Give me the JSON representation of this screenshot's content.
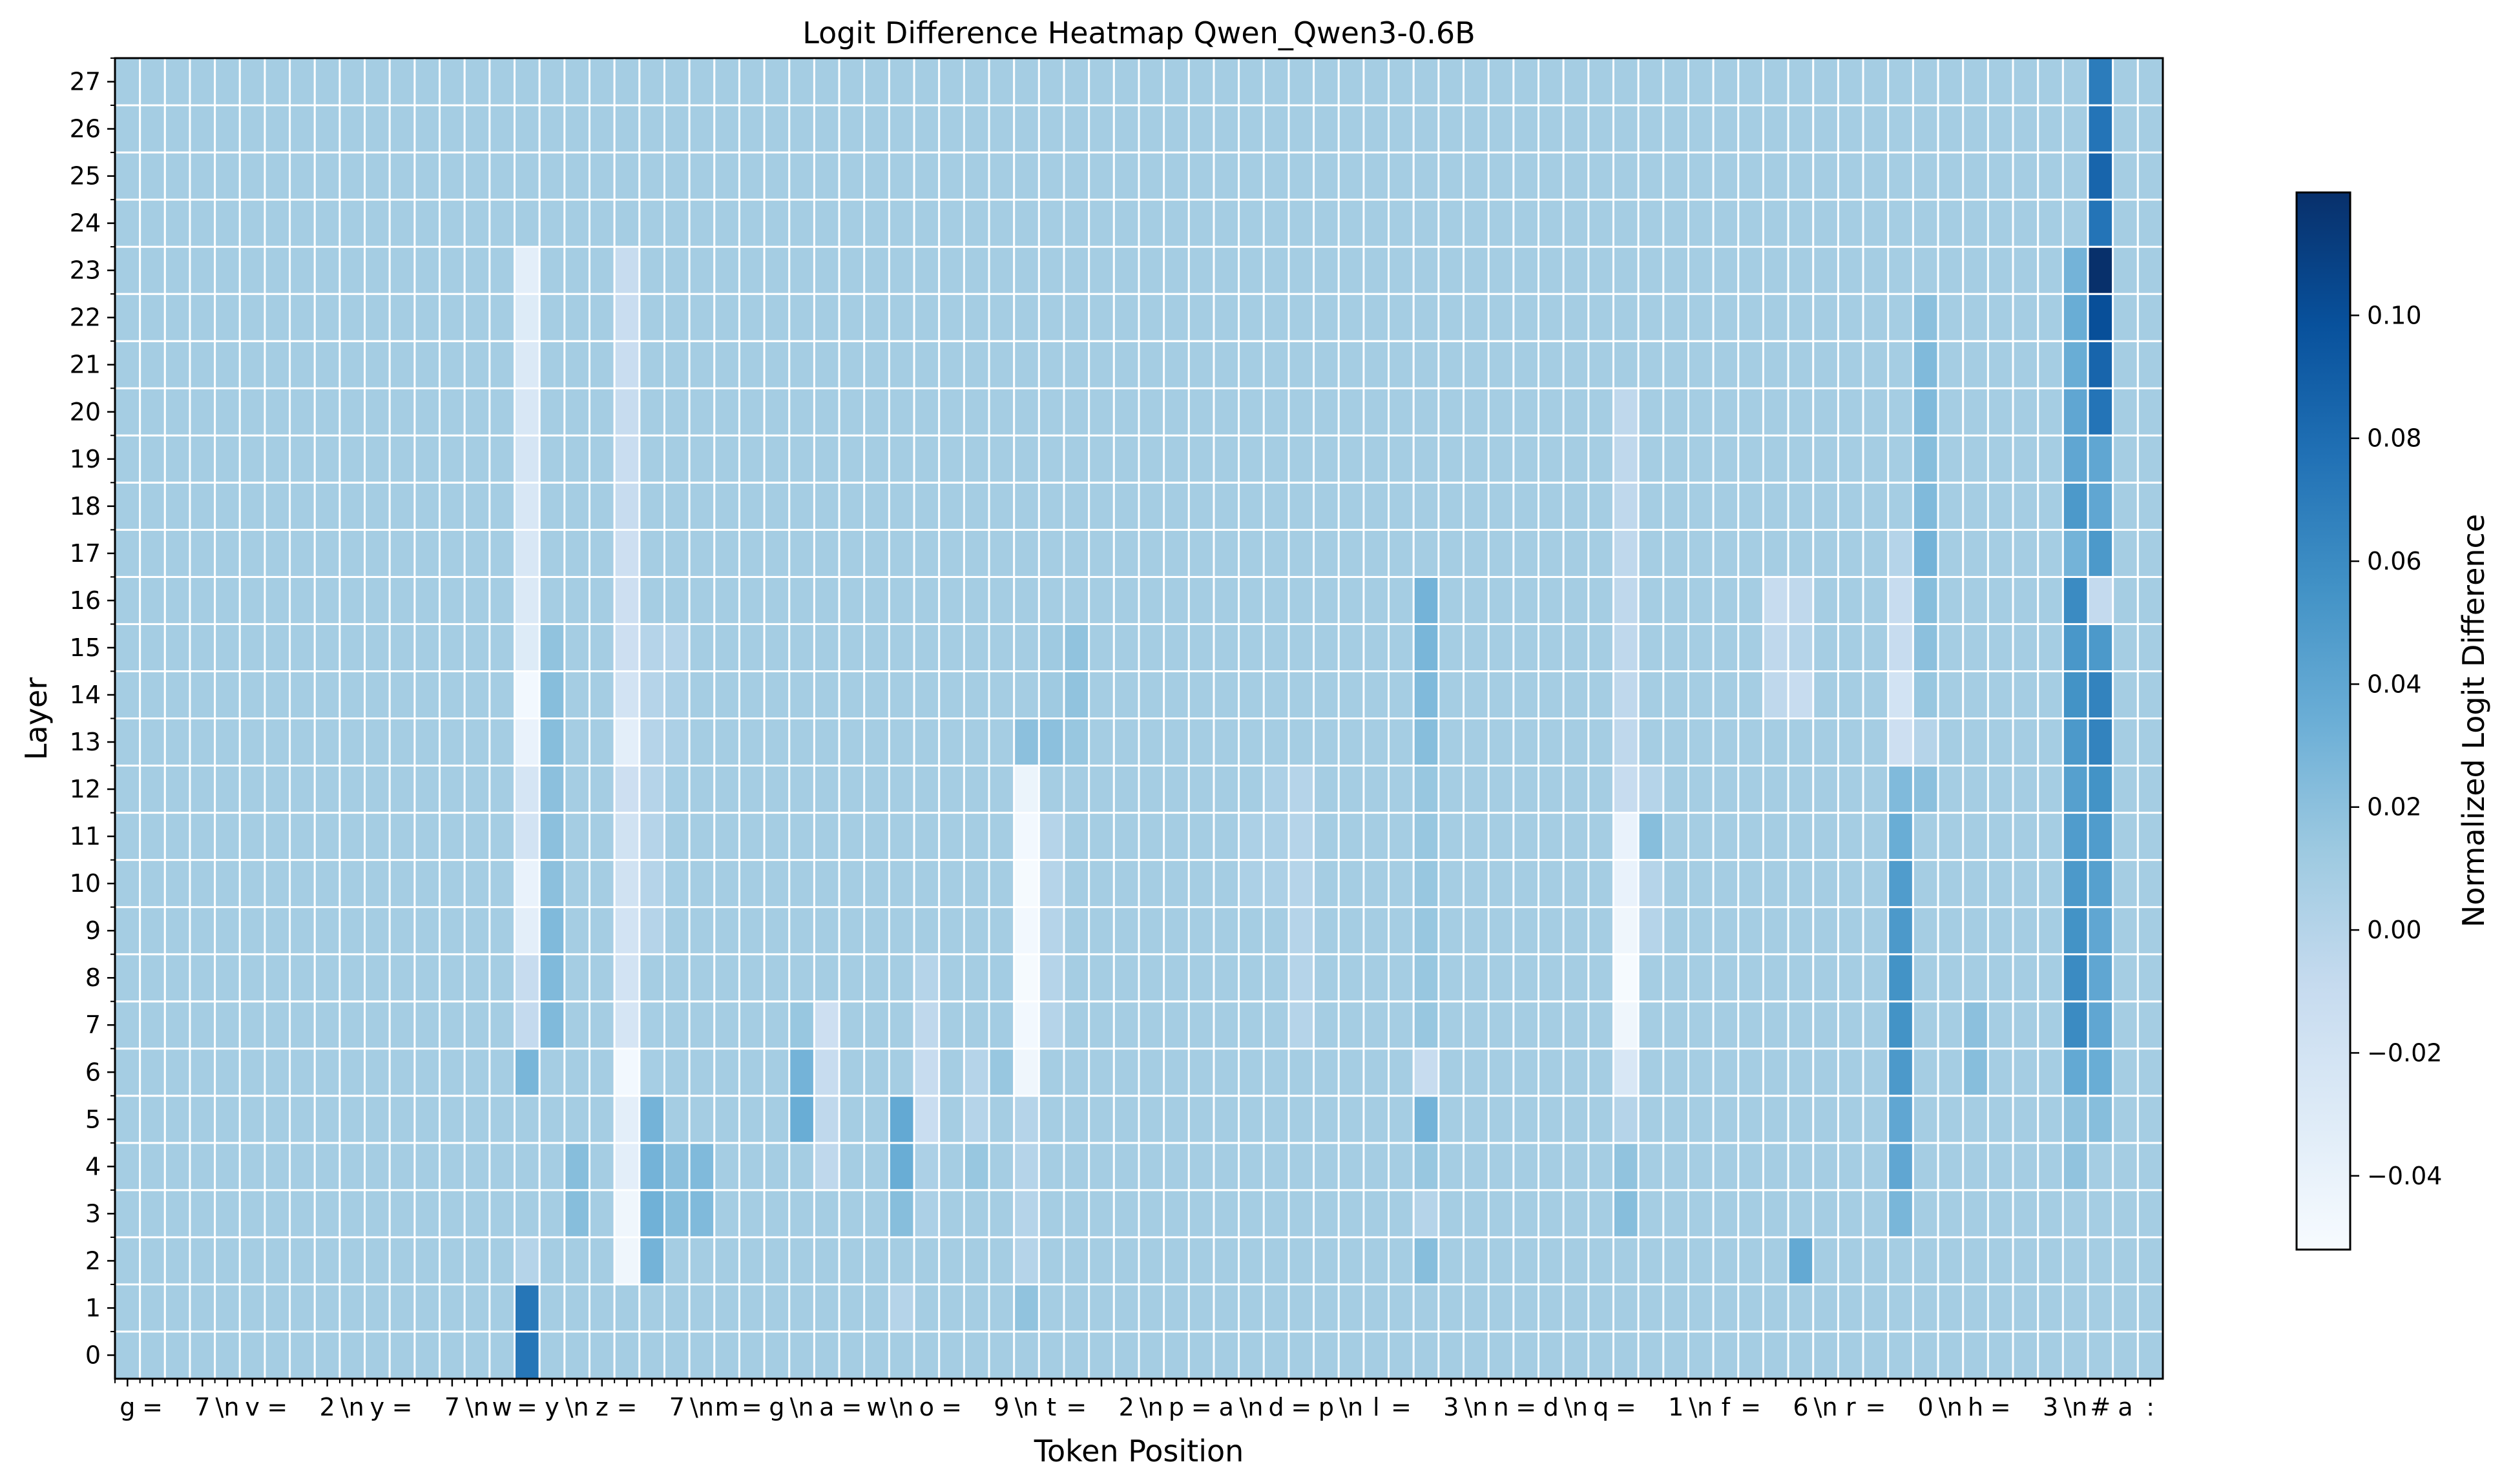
{
  "chart_data": {
    "type": "heatmap",
    "title": "Logit Difference Heatmap Qwen_Qwen3-0.6B",
    "xlabel": "Token Position",
    "ylabel": "Layer",
    "colorbar_label": "Normalized Logit Difference",
    "colormap": "Blues",
    "vmin": -0.052,
    "vmax": 0.12,
    "colorbar_ticks": [
      -0.04,
      -0.02,
      0.0,
      0.02,
      0.04,
      0.06,
      0.08,
      0.1
    ],
    "colorbar_tick_labels": [
      "−0.04",
      "−0.02",
      "0.00",
      "0.02",
      "0.04",
      "0.06",
      "0.08",
      "0.10"
    ],
    "layers": [
      0,
      1,
      2,
      3,
      4,
      5,
      6,
      7,
      8,
      9,
      10,
      11,
      12,
      13,
      14,
      15,
      16,
      17,
      18,
      19,
      20,
      21,
      22,
      23,
      24,
      25,
      26,
      27
    ],
    "tokens": [
      "g",
      " =",
      "",
      "7",
      "\\n",
      "v",
      " =",
      "",
      "2",
      "\\n",
      "y",
      " =",
      "",
      "7",
      "\\n",
      "w",
      " =",
      "y",
      "\\n",
      "z",
      " =",
      "",
      "7",
      "\\n",
      "m",
      " =",
      "g",
      "\\n",
      "a",
      " =",
      "w",
      "\\n",
      "o",
      " =",
      "",
      "9",
      "\\n",
      "t",
      " =",
      "",
      "2",
      "\\n",
      "p",
      " =",
      "a",
      "\\n",
      "d",
      " =",
      "p",
      "\\n",
      "l",
      " =",
      "",
      "3",
      "\\n",
      "n",
      " =",
      "d",
      "\\n",
      "q",
      " =",
      "",
      "1",
      "\\n",
      "f",
      " =",
      "",
      "6",
      "\\n",
      "r",
      " =",
      "",
      "0",
      "\\n",
      "h",
      " =",
      "",
      "3",
      "\\n",
      "#",
      "a",
      ":"
    ],
    "base_value": 0.009,
    "cells": [
      [
        0,
        16,
        0.074
      ],
      [
        1,
        16,
        0.074
      ],
      [
        2,
        16,
        0.0
      ],
      [
        3,
        16,
        0.009
      ],
      [
        4,
        16,
        0.009
      ],
      [
        5,
        16,
        0.009
      ],
      [
        6,
        16,
        0.028
      ],
      [
        7,
        16,
        -0.008
      ],
      [
        8,
        16,
        -0.01
      ],
      [
        9,
        16,
        -0.035
      ],
      [
        10,
        16,
        -0.04
      ],
      [
        11,
        16,
        -0.02
      ],
      [
        12,
        16,
        -0.022
      ],
      [
        13,
        16,
        -0.04
      ],
      [
        14,
        16,
        -0.048
      ],
      [
        15,
        16,
        -0.03
      ],
      [
        16,
        16,
        -0.028
      ],
      [
        17,
        16,
        -0.025
      ],
      [
        18,
        16,
        -0.025
      ],
      [
        19,
        16,
        -0.022
      ],
      [
        20,
        16,
        -0.025
      ],
      [
        21,
        16,
        -0.028
      ],
      [
        22,
        16,
        -0.03
      ],
      [
        23,
        16,
        -0.035
      ],
      [
        7,
        17,
        0.025
      ],
      [
        8,
        17,
        0.025
      ],
      [
        9,
        17,
        0.025
      ],
      [
        10,
        17,
        0.02
      ],
      [
        11,
        17,
        0.02
      ],
      [
        12,
        17,
        0.02
      ],
      [
        13,
        17,
        0.022
      ],
      [
        14,
        17,
        0.022
      ],
      [
        15,
        17,
        0.018
      ],
      [
        3,
        18,
        0.022
      ],
      [
        4,
        18,
        0.022
      ],
      [
        9,
        21,
        0.0
      ],
      [
        10,
        21,
        0.0
      ],
      [
        11,
        21,
        0.0
      ],
      [
        12,
        21,
        0.0
      ],
      [
        13,
        21,
        0.0
      ],
      [
        14,
        21,
        0.0
      ],
      [
        15,
        21,
        0.0
      ],
      [
        10,
        22,
        0.008
      ],
      [
        11,
        22,
        0.009
      ],
      [
        12,
        22,
        0.008
      ],
      [
        13,
        22,
        0.005
      ],
      [
        14,
        22,
        0.005
      ],
      [
        15,
        22,
        0.0
      ],
      [
        3,
        23,
        0.025
      ],
      [
        4,
        23,
        0.025
      ],
      [
        2,
        20,
        -0.045
      ],
      [
        3,
        20,
        -0.045
      ],
      [
        4,
        20,
        -0.035
      ],
      [
        5,
        20,
        -0.035
      ],
      [
        6,
        20,
        -0.048
      ],
      [
        7,
        20,
        -0.022
      ],
      [
        8,
        20,
        -0.02
      ],
      [
        9,
        20,
        -0.02
      ],
      [
        10,
        20,
        -0.018
      ],
      [
        11,
        20,
        -0.018
      ],
      [
        12,
        20,
        -0.015
      ],
      [
        13,
        20,
        -0.035
      ],
      [
        14,
        20,
        -0.02
      ],
      [
        15,
        20,
        -0.015
      ],
      [
        16,
        20,
        -0.015
      ],
      [
        17,
        20,
        -0.015
      ],
      [
        18,
        20,
        -0.01
      ],
      [
        19,
        20,
        -0.012
      ],
      [
        20,
        20,
        -0.01
      ],
      [
        21,
        20,
        -0.012
      ],
      [
        22,
        20,
        -0.012
      ],
      [
        23,
        20,
        -0.01
      ],
      [
        2,
        21,
        0.03
      ],
      [
        3,
        21,
        0.032
      ],
      [
        4,
        21,
        0.03
      ],
      [
        5,
        21,
        0.03
      ],
      [
        6,
        21,
        0.008
      ],
      [
        7,
        21,
        0.008
      ],
      [
        3,
        22,
        0.022
      ],
      [
        4,
        22,
        0.02
      ],
      [
        5,
        27,
        0.035
      ],
      [
        6,
        27,
        0.03
      ],
      [
        7,
        27,
        0.015
      ],
      [
        4,
        28,
        -0.005
      ],
      [
        5,
        28,
        -0.005
      ],
      [
        6,
        28,
        -0.01
      ],
      [
        7,
        28,
        -0.015
      ],
      [
        1,
        31,
        0.0
      ],
      [
        3,
        31,
        0.022
      ],
      [
        4,
        31,
        0.035
      ],
      [
        5,
        31,
        0.038
      ],
      [
        6,
        32,
        -0.01
      ],
      [
        5,
        32,
        -0.012
      ],
      [
        4,
        32,
        0.005
      ],
      [
        3,
        32,
        0.005
      ],
      [
        7,
        32,
        -0.005
      ],
      [
        8,
        32,
        0.0
      ],
      [
        4,
        34,
        0.015
      ],
      [
        5,
        34,
        0.0
      ],
      [
        6,
        34,
        0.0
      ],
      [
        6,
        35,
        0.015
      ],
      [
        7,
        35,
        0.01
      ],
      [
        8,
        35,
        0.01
      ],
      [
        1,
        36,
        0.018
      ],
      [
        2,
        36,
        0.0
      ],
      [
        3,
        36,
        0.0
      ],
      [
        4,
        36,
        0.0
      ],
      [
        5,
        36,
        0.0
      ],
      [
        6,
        36,
        -0.045
      ],
      [
        7,
        36,
        -0.048
      ],
      [
        8,
        36,
        -0.05
      ],
      [
        9,
        36,
        -0.048
      ],
      [
        10,
        36,
        -0.05
      ],
      [
        11,
        36,
        -0.048
      ],
      [
        12,
        36,
        -0.042
      ],
      [
        13,
        36,
        0.02
      ],
      [
        7,
        37,
        0.0
      ],
      [
        8,
        37,
        0.0
      ],
      [
        9,
        37,
        0.0
      ],
      [
        10,
        37,
        0.0
      ],
      [
        11,
        37,
        0.0
      ],
      [
        13,
        37,
        0.02
      ],
      [
        14,
        37,
        0.012
      ],
      [
        15,
        37,
        0.012
      ],
      [
        13,
        38,
        0.015
      ],
      [
        14,
        38,
        0.018
      ],
      [
        15,
        38,
        0.018
      ],
      [
        10,
        45,
        0.005
      ],
      [
        11,
        45,
        0.005
      ],
      [
        10,
        46,
        0.005
      ],
      [
        11,
        46,
        0.005
      ],
      [
        12,
        46,
        0.005
      ],
      [
        7,
        47,
        0.0
      ],
      [
        8,
        47,
        0.0
      ],
      [
        9,
        47,
        0.0
      ],
      [
        10,
        47,
        0.0
      ],
      [
        11,
        47,
        0.0
      ],
      [
        12,
        47,
        0.0
      ],
      [
        2,
        52,
        0.022
      ],
      [
        3,
        52,
        0.0
      ],
      [
        4,
        52,
        0.015
      ],
      [
        5,
        52,
        0.03
      ],
      [
        6,
        52,
        -0.01
      ],
      [
        7,
        52,
        0.015
      ],
      [
        8,
        52,
        0.015
      ],
      [
        9,
        52,
        0.015
      ],
      [
        10,
        52,
        0.015
      ],
      [
        11,
        52,
        0.015
      ],
      [
        12,
        52,
        0.015
      ],
      [
        13,
        52,
        0.022
      ],
      [
        14,
        52,
        0.025
      ],
      [
        15,
        52,
        0.028
      ],
      [
        16,
        52,
        0.03
      ],
      [
        3,
        60,
        0.022
      ],
      [
        4,
        60,
        0.018
      ],
      [
        5,
        60,
        0.0
      ],
      [
        6,
        60,
        -0.025
      ],
      [
        7,
        60,
        -0.045
      ],
      [
        8,
        60,
        -0.05
      ],
      [
        9,
        60,
        -0.045
      ],
      [
        10,
        60,
        -0.04
      ],
      [
        11,
        60,
        -0.04
      ],
      [
        12,
        60,
        -0.01
      ],
      [
        13,
        60,
        -0.005
      ],
      [
        14,
        60,
        -0.005
      ],
      [
        15,
        60,
        -0.005
      ],
      [
        16,
        60,
        -0.005
      ],
      [
        17,
        60,
        -0.005
      ],
      [
        18,
        60,
        -0.005
      ],
      [
        19,
        60,
        -0.005
      ],
      [
        20,
        60,
        -0.005
      ],
      [
        11,
        61,
        0.022
      ],
      [
        12,
        61,
        0.0
      ],
      [
        10,
        61,
        0.0
      ],
      [
        9,
        61,
        0.0
      ],
      [
        2,
        67,
        0.038
      ],
      [
        15,
        66,
        -0.005
      ],
      [
        16,
        66,
        -0.01
      ],
      [
        14,
        66,
        -0.005
      ],
      [
        16,
        67,
        -0.005
      ],
      [
        15,
        67,
        0.0
      ],
      [
        14,
        67,
        -0.01
      ],
      [
        3,
        71,
        0.028
      ],
      [
        4,
        71,
        0.04
      ],
      [
        5,
        71,
        0.04
      ],
      [
        6,
        71,
        0.05
      ],
      [
        7,
        71,
        0.055
      ],
      [
        8,
        71,
        0.055
      ],
      [
        9,
        71,
        0.05
      ],
      [
        10,
        71,
        0.048
      ],
      [
        11,
        71,
        0.035
      ],
      [
        12,
        71,
        0.025
      ],
      [
        13,
        71,
        -0.015
      ],
      [
        14,
        71,
        -0.02
      ],
      [
        15,
        71,
        -0.01
      ],
      [
        16,
        71,
        -0.01
      ],
      [
        17,
        71,
        0.0
      ],
      [
        12,
        72,
        0.02
      ],
      [
        13,
        72,
        0.0
      ],
      [
        14,
        72,
        0.015
      ],
      [
        15,
        72,
        0.02
      ],
      [
        16,
        72,
        0.022
      ],
      [
        17,
        72,
        0.03
      ],
      [
        18,
        72,
        0.025
      ],
      [
        19,
        72,
        0.022
      ],
      [
        20,
        72,
        0.025
      ],
      [
        21,
        72,
        0.025
      ],
      [
        22,
        72,
        0.02
      ],
      [
        6,
        74,
        0.022
      ],
      [
        7,
        74,
        0.02
      ],
      [
        4,
        78,
        0.018
      ],
      [
        5,
        78,
        0.018
      ],
      [
        6,
        78,
        0.038
      ],
      [
        7,
        78,
        0.06
      ],
      [
        8,
        78,
        0.06
      ],
      [
        9,
        78,
        0.055
      ],
      [
        10,
        78,
        0.05
      ],
      [
        11,
        78,
        0.048
      ],
      [
        12,
        78,
        0.045
      ],
      [
        13,
        78,
        0.05
      ],
      [
        14,
        78,
        0.055
      ],
      [
        15,
        78,
        0.052
      ],
      [
        16,
        78,
        0.06
      ],
      [
        17,
        78,
        0.03
      ],
      [
        18,
        78,
        0.05
      ],
      [
        19,
        78,
        0.04
      ],
      [
        20,
        78,
        0.04
      ],
      [
        21,
        78,
        0.035
      ],
      [
        22,
        78,
        0.035
      ],
      [
        23,
        78,
        0.03
      ],
      [
        0,
        79,
        0.009
      ],
      [
        1,
        79,
        0.009
      ],
      [
        2,
        79,
        0.009
      ],
      [
        3,
        79,
        0.009
      ],
      [
        4,
        79,
        0.009
      ],
      [
        5,
        79,
        0.022
      ],
      [
        6,
        79,
        0.035
      ],
      [
        7,
        79,
        0.04
      ],
      [
        8,
        79,
        0.04
      ],
      [
        9,
        79,
        0.04
      ],
      [
        10,
        79,
        0.045
      ],
      [
        11,
        79,
        0.048
      ],
      [
        12,
        79,
        0.055
      ],
      [
        13,
        79,
        0.065
      ],
      [
        14,
        79,
        0.065
      ],
      [
        15,
        79,
        0.05
      ],
      [
        16,
        79,
        -0.008
      ],
      [
        17,
        79,
        0.05
      ],
      [
        18,
        79,
        0.04
      ],
      [
        19,
        79,
        0.04
      ],
      [
        20,
        79,
        0.075
      ],
      [
        21,
        79,
        0.085
      ],
      [
        22,
        79,
        0.1
      ],
      [
        23,
        79,
        0.12
      ],
      [
        24,
        79,
        0.075
      ],
      [
        25,
        79,
        0.085
      ],
      [
        26,
        79,
        0.075
      ],
      [
        27,
        79,
        0.07
      ]
    ]
  }
}
